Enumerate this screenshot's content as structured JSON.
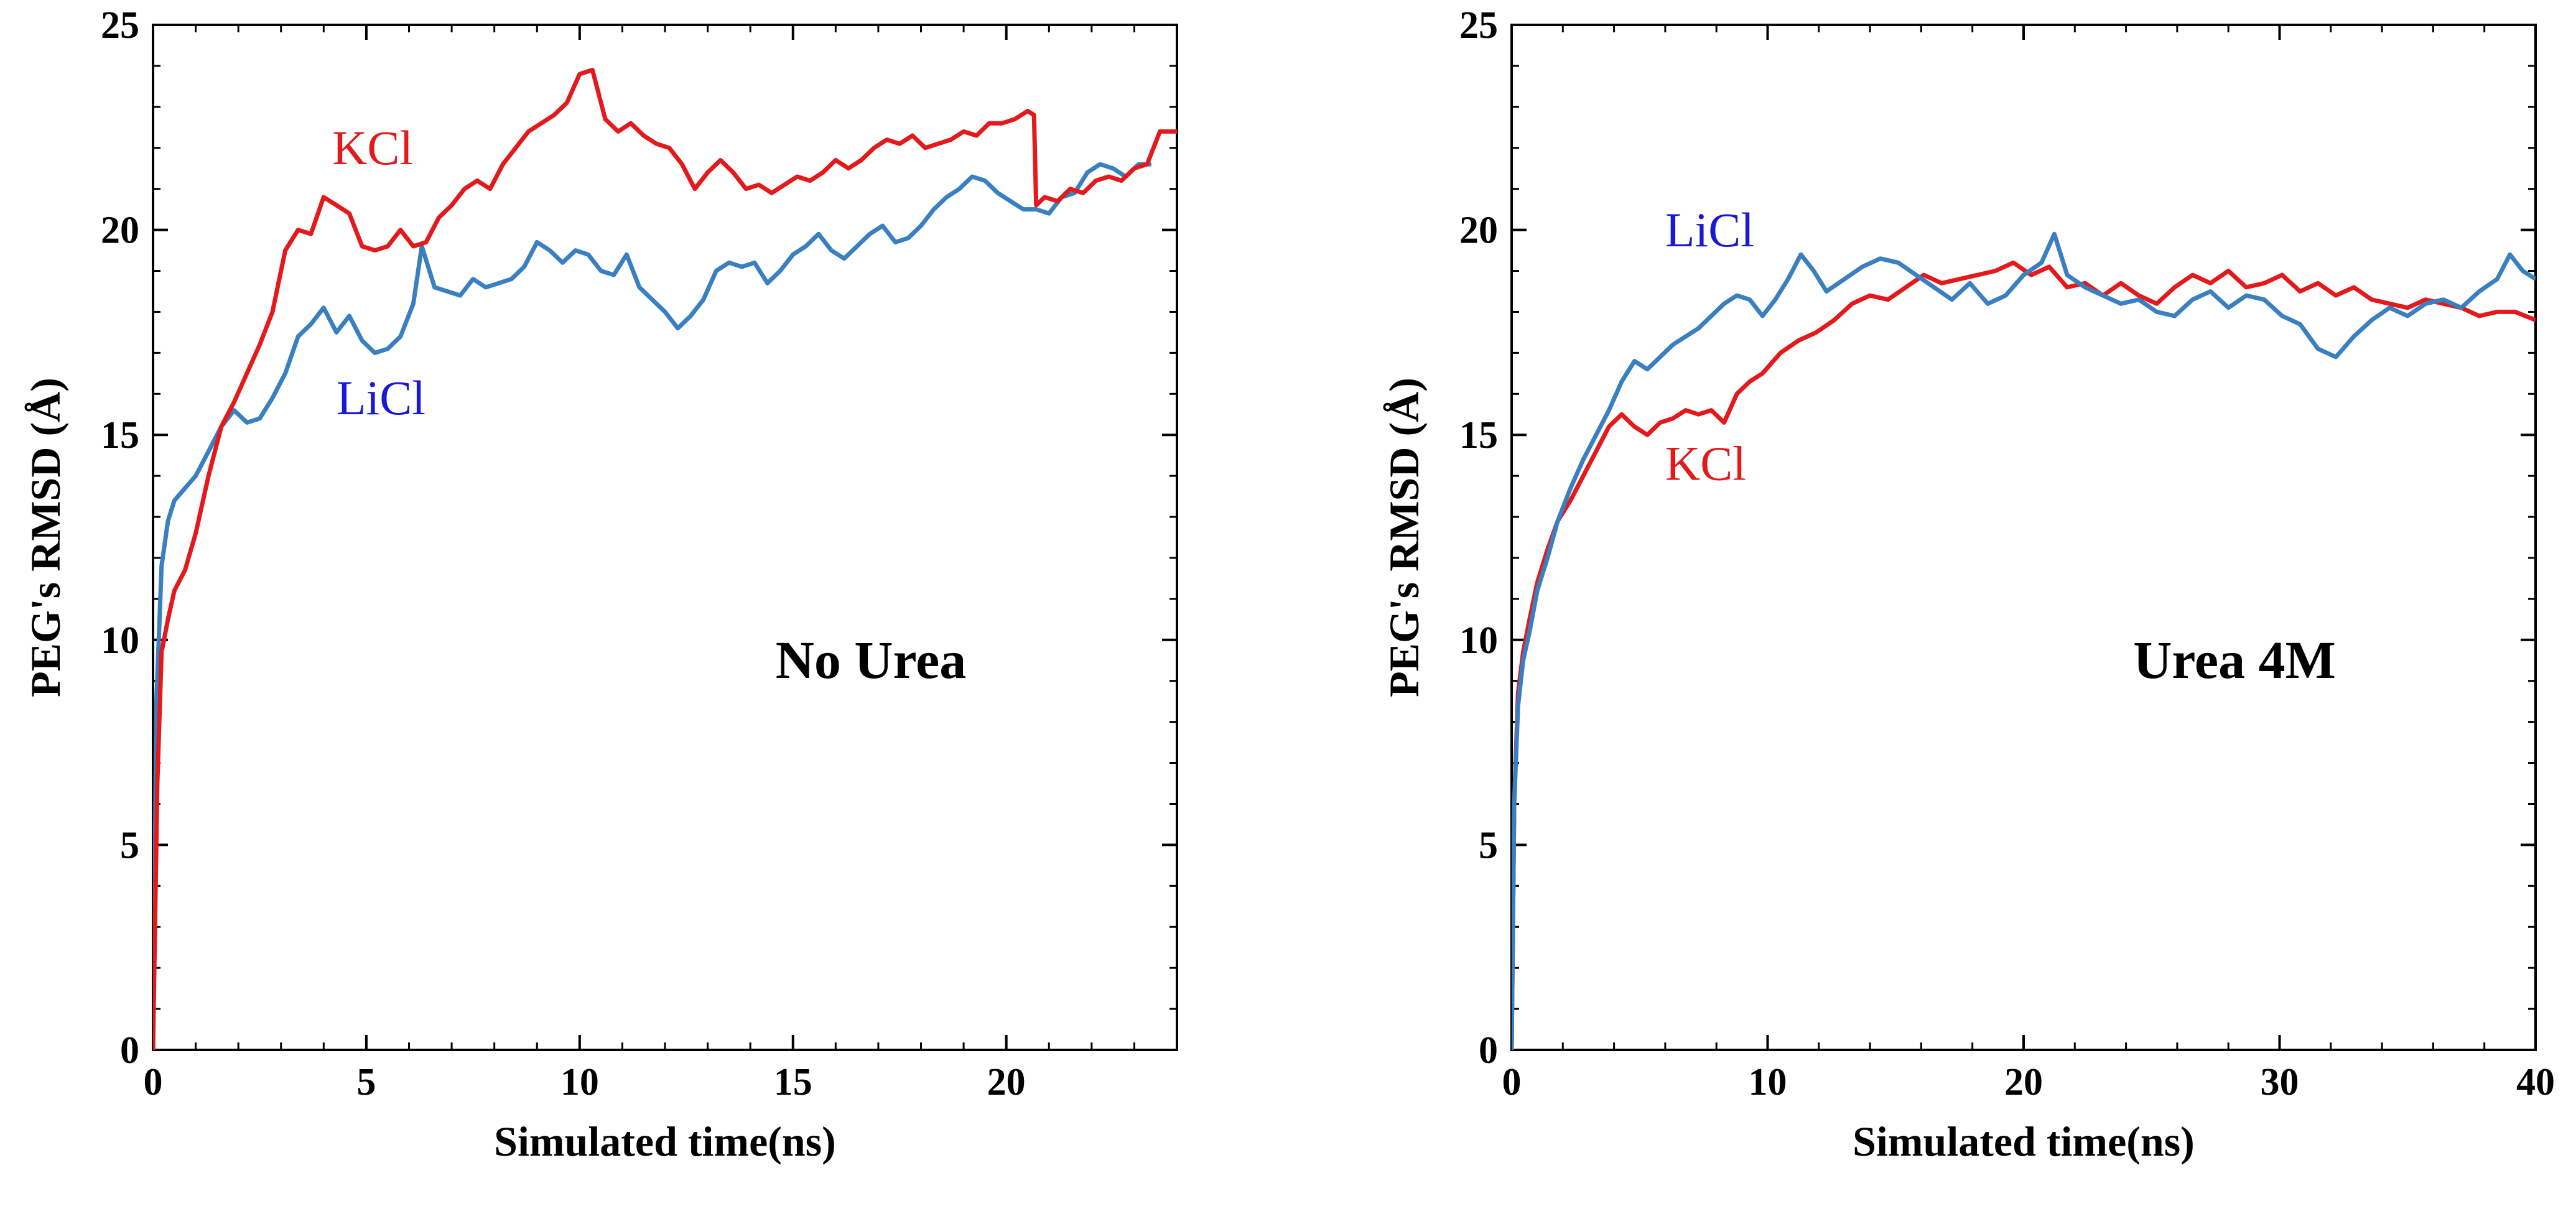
{
  "colors": {
    "KCl": "#e3191c",
    "LiCl": "#3a7fc0",
    "LiCl_label": "#1818d6",
    "axis": "#000000"
  },
  "chart_data": [
    {
      "type": "line",
      "title": "No Urea",
      "xlabel": "Simulated time(ns)",
      "ylabel": "PEG's RMSD (Å)",
      "xlim": [
        0,
        24
      ],
      "ylim": [
        0,
        25
      ],
      "xticks": [
        0,
        5,
        10,
        15,
        20
      ],
      "xtick_labels": [
        "0",
        "5",
        "10",
        "15",
        "20"
      ],
      "yticks": [
        0,
        5,
        10,
        15,
        20,
        25
      ],
      "ytick_labels": [
        "0",
        "5",
        "10",
        "15",
        "20",
        "25"
      ],
      "x_minor_step": 1,
      "y_minor_step": 1,
      "annotations": [
        {
          "text": "KCl",
          "series": "KCl",
          "x": 4.2,
          "y": 21.6
        },
        {
          "text": "LiCl",
          "series": "LiCl",
          "x": 4.3,
          "y": 15.5
        }
      ],
      "series": [
        {
          "name": "KCl",
          "x": [
            0,
            0.1,
            0.2,
            0.35,
            0.5,
            0.75,
            1.0,
            1.3,
            1.6,
            1.9,
            2.2,
            2.5,
            2.8,
            3.1,
            3.4,
            3.7,
            4.0,
            4.3,
            4.6,
            4.9,
            5.2,
            5.5,
            5.8,
            6.1,
            6.4,
            6.7,
            7.0,
            7.3,
            7.6,
            7.9,
            8.2,
            8.5,
            8.8,
            9.1,
            9.4,
            9.7,
            10.0,
            10.3,
            10.6,
            10.9,
            11.2,
            11.5,
            11.8,
            12.1,
            12.4,
            12.7,
            13.0,
            13.3,
            13.6,
            13.9,
            14.2,
            14.5,
            14.8,
            15.1,
            15.4,
            15.7,
            16.0,
            16.3,
            16.6,
            16.9,
            17.2,
            17.5,
            17.8,
            18.1,
            18.4,
            18.7,
            19.0,
            19.3,
            19.6,
            19.9,
            20.2,
            20.5,
            20.65,
            20.7,
            20.9,
            21.2,
            21.5,
            21.8,
            22.1,
            22.4,
            22.7,
            23.0,
            23.3,
            23.6,
            24.0
          ],
          "y": [
            0,
            6.5,
            9.7,
            10.5,
            11.2,
            11.7,
            12.6,
            14.0,
            15.2,
            15.8,
            16.5,
            17.2,
            18.0,
            19.5,
            20.0,
            19.9,
            20.8,
            20.6,
            20.4,
            19.6,
            19.5,
            19.6,
            20.0,
            19.6,
            19.7,
            20.3,
            20.6,
            21.0,
            21.2,
            21.0,
            21.6,
            22.0,
            22.4,
            22.6,
            22.8,
            23.1,
            23.8,
            23.9,
            22.7,
            22.4,
            22.6,
            22.3,
            22.1,
            22.0,
            21.6,
            21.0,
            21.4,
            21.7,
            21.4,
            21.0,
            21.1,
            20.9,
            21.1,
            21.3,
            21.2,
            21.4,
            21.7,
            21.5,
            21.7,
            22.0,
            22.2,
            22.1,
            22.3,
            22.0,
            22.1,
            22.2,
            22.4,
            22.3,
            22.6,
            22.6,
            22.7,
            22.9,
            22.8,
            20.6,
            20.8,
            20.7,
            21.0,
            20.9,
            21.2,
            21.3,
            21.2,
            21.5,
            21.6,
            22.4,
            22.4
          ]
        },
        {
          "name": "LiCl",
          "x": [
            0,
            0.08,
            0.2,
            0.35,
            0.5,
            0.75,
            1.0,
            1.3,
            1.6,
            1.9,
            2.2,
            2.5,
            2.8,
            3.1,
            3.4,
            3.7,
            4.0,
            4.3,
            4.6,
            4.9,
            5.2,
            5.5,
            5.8,
            6.1,
            6.3,
            6.6,
            6.9,
            7.2,
            7.5,
            7.8,
            8.1,
            8.4,
            8.7,
            9.0,
            9.3,
            9.6,
            9.9,
            10.2,
            10.5,
            10.8,
            11.1,
            11.4,
            11.7,
            12.0,
            12.3,
            12.6,
            12.9,
            13.2,
            13.5,
            13.8,
            14.1,
            14.4,
            14.7,
            15.0,
            15.3,
            15.6,
            15.9,
            16.2,
            16.5,
            16.8,
            17.1,
            17.4,
            17.7,
            18.0,
            18.3,
            18.6,
            18.9,
            19.2,
            19.5,
            19.8,
            20.1,
            20.4,
            20.7,
            21.0,
            21.3,
            21.6,
            21.9,
            22.2,
            22.5,
            22.8,
            23.1,
            23.4
          ],
          "y": [
            0,
            8.5,
            11.8,
            12.9,
            13.4,
            13.7,
            14.0,
            14.6,
            15.2,
            15.6,
            15.3,
            15.4,
            15.9,
            16.5,
            17.4,
            17.7,
            18.1,
            17.5,
            17.9,
            17.3,
            17.0,
            17.1,
            17.4,
            18.2,
            19.6,
            18.6,
            18.5,
            18.4,
            18.8,
            18.6,
            18.7,
            18.8,
            19.1,
            19.7,
            19.5,
            19.2,
            19.5,
            19.4,
            19.0,
            18.9,
            19.4,
            18.6,
            18.3,
            18.0,
            17.6,
            17.9,
            18.3,
            19.0,
            19.2,
            19.1,
            19.2,
            18.7,
            19.0,
            19.4,
            19.6,
            19.9,
            19.5,
            19.3,
            19.6,
            19.9,
            20.1,
            19.7,
            19.8,
            20.1,
            20.5,
            20.8,
            21.0,
            21.3,
            21.2,
            20.9,
            20.7,
            20.5,
            20.5,
            20.4,
            20.8,
            20.9,
            21.4,
            21.6,
            21.5,
            21.3,
            21.6,
            21.6
          ]
        }
      ]
    },
    {
      "type": "line",
      "title": "Urea 4M",
      "xlabel": "Simulated time(ns)",
      "ylabel": "PEG's RMSD (Å)",
      "xlim": [
        0,
        40
      ],
      "ylim": [
        0,
        25
      ],
      "xticks": [
        0,
        10,
        20,
        30,
        40
      ],
      "xtick_labels": [
        "0",
        "10",
        "20",
        "30",
        "40"
      ],
      "yticks": [
        0,
        5,
        10,
        15,
        20,
        25
      ],
      "ytick_labels": [
        "0",
        "5",
        "10",
        "15",
        "20",
        "25"
      ],
      "x_minor_step": 2,
      "y_minor_step": 1,
      "annotations": [
        {
          "text": "LiCl",
          "series": "LiCl",
          "x": 6.0,
          "y": 19.6
        },
        {
          "text": "KCl",
          "series": "KCl",
          "x": 6.0,
          "y": 13.9
        }
      ],
      "series": [
        {
          "name": "KCl",
          "x": [
            0,
            0.1,
            0.25,
            0.45,
            0.7,
            1.0,
            1.4,
            1.8,
            2.3,
            2.8,
            3.3,
            3.8,
            4.3,
            4.8,
            5.3,
            5.8,
            6.3,
            6.8,
            7.3,
            7.8,
            8.3,
            8.8,
            9.3,
            9.8,
            10.5,
            11.2,
            11.9,
            12.6,
            13.3,
            14.0,
            14.7,
            15.4,
            16.1,
            16.8,
            17.5,
            18.2,
            18.9,
            19.6,
            20.3,
            21.0,
            21.7,
            22.4,
            23.1,
            23.8,
            24.5,
            25.2,
            25.9,
            26.6,
            27.3,
            28.0,
            28.7,
            29.4,
            30.1,
            30.8,
            31.5,
            32.2,
            32.9,
            33.6,
            34.3,
            35.0,
            35.7,
            36.4,
            37.1,
            37.8,
            38.5,
            39.2,
            40.0
          ],
          "y": [
            0,
            6.0,
            8.7,
            9.7,
            10.5,
            11.4,
            12.2,
            12.9,
            13.4,
            14.0,
            14.6,
            15.2,
            15.5,
            15.2,
            15.0,
            15.3,
            15.4,
            15.6,
            15.5,
            15.6,
            15.3,
            16.0,
            16.3,
            16.5,
            17.0,
            17.3,
            17.5,
            17.8,
            18.2,
            18.4,
            18.3,
            18.6,
            18.9,
            18.7,
            18.8,
            18.9,
            19.0,
            19.2,
            18.9,
            19.1,
            18.6,
            18.7,
            18.4,
            18.7,
            18.4,
            18.2,
            18.6,
            18.9,
            18.7,
            19.0,
            18.6,
            18.7,
            18.9,
            18.5,
            18.7,
            18.4,
            18.6,
            18.3,
            18.2,
            18.1,
            18.3,
            18.2,
            18.1,
            17.9,
            18.0,
            18.0,
            17.8
          ]
        },
        {
          "name": "LiCl",
          "x": [
            0,
            0.1,
            0.25,
            0.45,
            0.7,
            1.0,
            1.4,
            1.8,
            2.3,
            2.8,
            3.3,
            3.8,
            4.3,
            4.8,
            5.3,
            5.8,
            6.3,
            6.8,
            7.3,
            7.8,
            8.3,
            8.8,
            9.3,
            9.8,
            10.3,
            10.8,
            11.3,
            11.8,
            12.3,
            13.0,
            13.7,
            14.4,
            15.1,
            15.8,
            16.5,
            17.2,
            17.9,
            18.6,
            19.3,
            20.0,
            20.7,
            21.2,
            21.7,
            22.4,
            23.1,
            23.8,
            24.5,
            25.2,
            25.9,
            26.6,
            27.3,
            28.0,
            28.7,
            29.4,
            30.1,
            30.8,
            31.5,
            32.2,
            32.9,
            33.6,
            34.3,
            35.0,
            35.7,
            36.4,
            37.1,
            37.8,
            38.5,
            39.0,
            39.5,
            40.0
          ],
          "y": [
            0,
            6.0,
            8.4,
            9.5,
            10.2,
            11.2,
            12.0,
            12.9,
            13.7,
            14.4,
            15.0,
            15.6,
            16.3,
            16.8,
            16.6,
            16.9,
            17.2,
            17.4,
            17.6,
            17.9,
            18.2,
            18.4,
            18.3,
            17.9,
            18.3,
            18.8,
            19.4,
            19.0,
            18.5,
            18.8,
            19.1,
            19.3,
            19.2,
            18.9,
            18.6,
            18.3,
            18.7,
            18.2,
            18.4,
            18.9,
            19.2,
            19.9,
            18.9,
            18.6,
            18.4,
            18.2,
            18.3,
            18.0,
            17.9,
            18.3,
            18.5,
            18.1,
            18.4,
            18.3,
            17.9,
            17.7,
            17.1,
            16.9,
            17.4,
            17.8,
            18.1,
            17.9,
            18.2,
            18.3,
            18.1,
            18.5,
            18.8,
            19.4,
            19.0,
            18.8
          ]
        }
      ]
    }
  ]
}
